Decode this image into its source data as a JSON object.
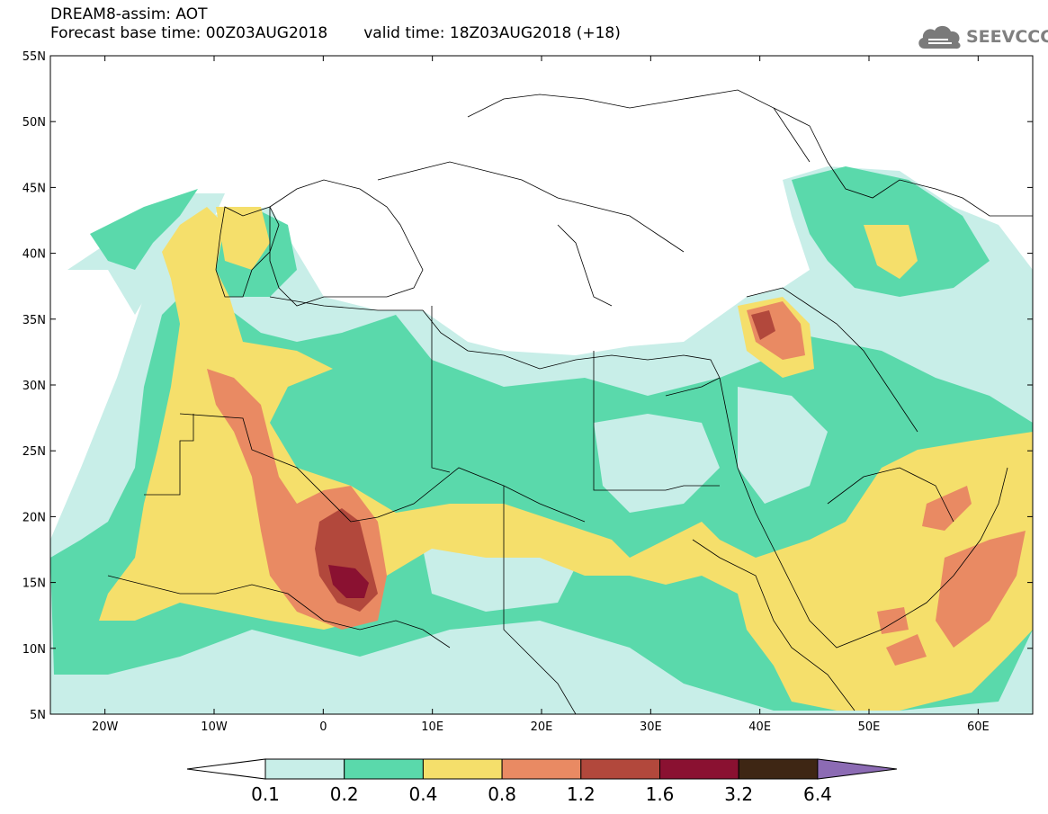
{
  "header": {
    "title": "DREAM8-assim: AOT",
    "base_time": "Forecast base time: 00Z03AUG2018",
    "valid_time": "valid time: 18Z03AUG2018 (+18)"
  },
  "logo": {
    "text": "SEEVCCC",
    "icon": "cloud-icon"
  },
  "map": {
    "projection": "lat-lon",
    "lon_range": [
      -25,
      65
    ],
    "lat_range": [
      5,
      55
    ],
    "lon_ticks": [
      "20W",
      "10W",
      "0",
      "10E",
      "20E",
      "30E",
      "40E",
      "50E",
      "60E"
    ],
    "lat_ticks": [
      "55N",
      "50N",
      "45N",
      "40N",
      "35N",
      "30N",
      "25N",
      "20N",
      "15N",
      "10N",
      "5N"
    ],
    "field": "aerosol optical thickness",
    "colors": {
      "lt0_1": "#ffffff",
      "0_1_0_2": "#c8eee8",
      "0_2_0_4": "#5ad9ab",
      "0_4_0_8": "#f5df6b",
      "0_8_1_2": "#e98a63",
      "1_2_1_6": "#b2483c",
      "1_6_3_2": "#8a1131",
      "3_2_6_4": "#3e2614",
      "gt6_4": "#8c6bb4"
    }
  },
  "legend": {
    "labels": [
      "0.1",
      "0.2",
      "0.4",
      "0.8",
      "1.2",
      "1.6",
      "3.2",
      "6.4"
    ],
    "colors": [
      "#ffffff",
      "#c8eee8",
      "#5ad9ab",
      "#f5df6b",
      "#e98a63",
      "#b2483c",
      "#8a1131",
      "#3e2614",
      "#8c6bb4"
    ]
  }
}
